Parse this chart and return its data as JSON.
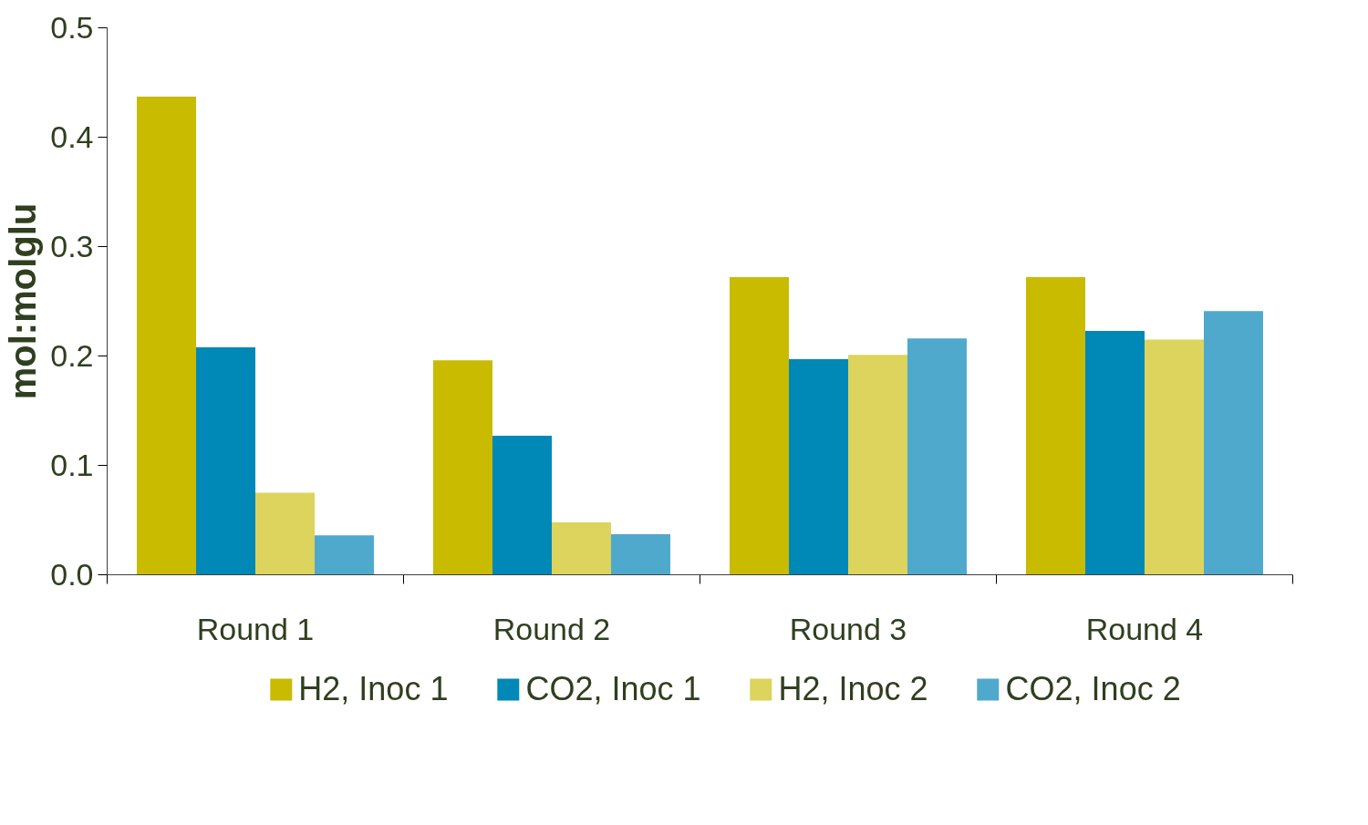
{
  "chart_data": {
    "type": "bar",
    "ylabel": "mol:molglu",
    "categories": [
      "Round 1",
      "Round 2",
      "Round 3",
      "Round 4"
    ],
    "series": [
      {
        "name": "H2, Inoc 1",
        "color": "#c8bb00",
        "values": [
          0.437,
          0.196,
          0.272,
          0.272
        ]
      },
      {
        "name": "CO2, Inoc 1",
        "color": "#0088b6",
        "values": [
          0.208,
          0.127,
          0.197,
          0.223
        ]
      },
      {
        "name": "H2, Inoc 2",
        "color": "#dcd45c",
        "values": [
          0.075,
          0.048,
          0.201,
          0.215
        ]
      },
      {
        "name": "CO2, Inoc 2",
        "color": "#4fa9cc",
        "values": [
          0.036,
          0.037,
          0.216,
          0.241
        ]
      }
    ],
    "ylim": [
      0,
      0.5
    ],
    "yticks": [
      {
        "value": 0,
        "label": "0.0"
      },
      0.1,
      0.2,
      0.3,
      0.4,
      0.5
    ],
    "grid": false,
    "legend": "bottom"
  }
}
